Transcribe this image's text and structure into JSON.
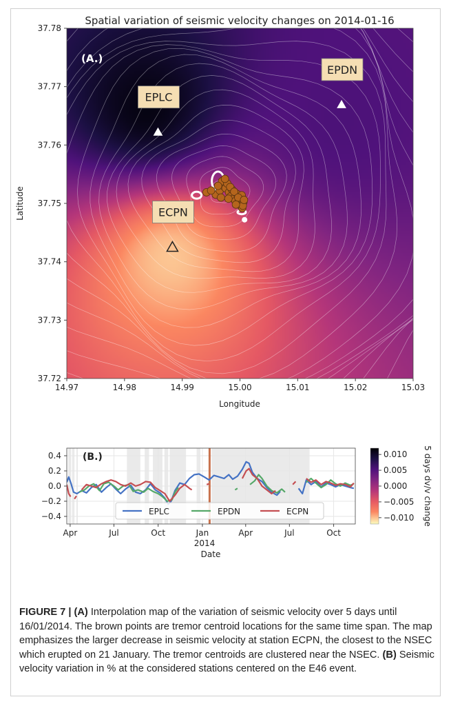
{
  "colors": {
    "epdn_box": "#f5deb3",
    "tremor_point": "#b5651d",
    "series_eplc": "#4472c4",
    "series_epdn": "#55a868",
    "series_ecpn": "#c44e52",
    "event_line": "#c8734e",
    "shade": "#d9d9d9"
  },
  "chart_data": [
    {
      "type": "heatmap",
      "title": "Spatial variation of seismic velocity changes on 2014-01-16",
      "panel_label": "(A.)",
      "xlabel": "Longitude",
      "ylabel": "Latitude",
      "xlim": [
        14.97,
        15.03
      ],
      "ylim": [
        37.72,
        37.78
      ],
      "xticks": [
        "14.97",
        "14.98",
        "14.99",
        "15.00",
        "15.01",
        "15.02",
        "15.03"
      ],
      "yticks": [
        "37.72",
        "37.73",
        "37.74",
        "37.75",
        "37.76",
        "37.77",
        "37.78"
      ],
      "grid": false,
      "colormap": "magma (reversed)",
      "stations": [
        {
          "name": "EPLC",
          "lon": 14.9858,
          "lat": 37.7622,
          "marker": "filled-triangle"
        },
        {
          "name": "EPDN",
          "lon": 15.0176,
          "lat": 37.7669,
          "marker": "filled-triangle"
        },
        {
          "name": "ECPN",
          "lon": 14.9883,
          "lat": 37.7425,
          "marker": "open-triangle"
        }
      ],
      "field_sources": [
        {
          "lon": 14.984,
          "lat": 37.766,
          "value": 0.0115
        },
        {
          "lon": 15.017,
          "lat": 37.764,
          "value": 0.0055
        },
        {
          "lon": 14.988,
          "lat": 37.741,
          "value": -0.0105
        }
      ],
      "tremor_centroids": [
        [
          14.9942,
          37.7519
        ],
        [
          14.9958,
          37.7515
        ],
        [
          14.9965,
          37.7522
        ],
        [
          14.9971,
          37.753
        ],
        [
          14.9969,
          37.7538
        ],
        [
          14.9975,
          37.7526
        ],
        [
          14.9981,
          37.7519
        ],
        [
          14.9984,
          37.7512
        ],
        [
          14.9989,
          37.7508
        ],
        [
          14.9992,
          37.7504
        ],
        [
          14.9996,
          37.75
        ],
        [
          15.0001,
          37.7496
        ],
        [
          15.0004,
          37.7492
        ],
        [
          14.9978,
          37.7534
        ],
        [
          14.9986,
          37.7524
        ],
        [
          14.9995,
          37.7516
        ],
        [
          15.0001,
          37.7508
        ],
        [
          15.0006,
          37.7502
        ],
        [
          15.0003,
          37.7514
        ],
        [
          14.9962,
          37.753
        ],
        [
          14.9974,
          37.7542
        ],
        [
          14.9983,
          37.7528
        ],
        [
          14.999,
          37.752
        ],
        [
          14.9997,
          37.751
        ],
        [
          15.0005,
          37.7496
        ],
        [
          14.995,
          37.7522
        ],
        [
          14.9967,
          37.751
        ],
        [
          14.998,
          37.7508
        ],
        [
          14.9993,
          37.7498
        ],
        [
          15.0007,
          37.7506
        ]
      ],
      "colorbar": {
        "label": "5 days dv/v change",
        "ticks": [
          "0.010",
          "0.005",
          "0.000",
          "−0.005",
          "−0.010"
        ],
        "range": [
          -0.012,
          0.012
        ]
      }
    },
    {
      "type": "line",
      "panel_label": "(B.)",
      "xlabel": "Date",
      "ylabel": "",
      "x_range": [
        "2013-03-25",
        "2014-11-15"
      ],
      "ylim": [
        -0.5,
        0.5
      ],
      "xticks": [
        "Apr",
        "Jul",
        "Oct",
        "Jan",
        "Apr",
        "Jul",
        "Oct"
      ],
      "xtick_dates": [
        "2013-04-01",
        "2013-07-01",
        "2013-10-01",
        "2014-01-01",
        "2014-04-01",
        "2014-07-01",
        "2014-10-01"
      ],
      "year_label": "2014",
      "yticks": [
        "0.4",
        "0.2",
        "0.0",
        "−0.2",
        "−0.4"
      ],
      "ytick_values": [
        0.4,
        0.2,
        0.0,
        -0.2,
        -0.4
      ],
      "event_date": "2014-01-16",
      "shaded_spans": [
        [
          "2013-03-28",
          "2013-04-03"
        ],
        [
          "2013-04-05",
          "2013-04-10"
        ],
        [
          "2013-04-14",
          "2013-04-17"
        ],
        [
          "2013-07-28",
          "2013-08-25"
        ],
        [
          "2013-09-03",
          "2013-09-12"
        ],
        [
          "2013-09-20",
          "2013-10-10"
        ],
        [
          "2013-10-14",
          "2013-10-22"
        ],
        [
          "2013-10-25",
          "2013-11-28"
        ],
        [
          "2013-12-20",
          "2013-12-28"
        ],
        [
          "2014-01-20",
          "2014-08-12"
        ]
      ],
      "legend": {
        "placement": "lower-center"
      },
      "series": [
        {
          "name": "EPLC",
          "points": [
            [
              "2013-03-25",
              0.05
            ],
            [
              "2013-03-29",
              0.12
            ],
            [
              "2013-04-03",
              0.03
            ],
            [
              "2013-04-08",
              -0.08
            ],
            [
              "2013-04-15",
              -0.1
            ],
            [
              "2013-04-25",
              -0.06
            ],
            [
              "2013-05-05",
              -0.09
            ],
            [
              "2013-05-15",
              -0.02
            ],
            [
              "2013-05-25",
              0.02
            ],
            [
              "2013-06-05",
              -0.08
            ],
            [
              "2013-06-15",
              -0.02
            ],
            [
              "2013-06-25",
              0.03
            ],
            [
              "2013-07-05",
              -0.04
            ],
            [
              "2013-07-15",
              -0.1
            ],
            [
              "2013-07-25",
              -0.04
            ],
            [
              "2013-08-05",
              0.01
            ],
            [
              "2013-08-15",
              -0.08
            ],
            [
              "2013-08-25",
              -0.1
            ],
            [
              "2013-09-05",
              -0.05
            ],
            [
              "2013-09-15",
              0.03
            ],
            [
              "2013-09-25",
              -0.05
            ],
            [
              "2013-10-05",
              -0.09
            ],
            [
              "2013-10-15",
              -0.16
            ],
            [
              "2013-10-22",
              -0.24
            ],
            [
              "2013-10-28",
              -0.2
            ],
            [
              "2013-11-05",
              -0.06
            ],
            [
              "2013-11-15",
              0.04
            ],
            [
              "2013-11-25",
              0.02
            ],
            [
              "2013-12-05",
              0.1
            ],
            [
              "2013-12-15",
              0.15
            ],
            [
              "2013-12-25",
              0.16
            ],
            [
              "2014-01-05",
              0.12
            ],
            [
              "2014-01-15",
              0.08
            ],
            [
              "2014-01-25",
              0.14
            ],
            [
              "2014-02-05",
              0.12
            ],
            [
              "2014-02-15",
              0.1
            ],
            [
              "2014-02-25",
              0.15
            ],
            [
              "2014-03-05",
              0.09
            ],
            [
              "2014-03-15",
              0.13
            ],
            [
              "2014-03-25",
              0.22
            ],
            [
              "2014-04-02",
              0.32
            ],
            [
              "2014-04-08",
              0.3
            ],
            [
              "2014-04-15",
              0.18
            ],
            [
              "2014-04-25",
              0.1
            ],
            [
              "2014-05-05",
              0.06
            ],
            [
              "2014-05-15",
              -0.02
            ],
            [
              "2014-05-25",
              -0.08
            ],
            [
              "2014-06-05",
              -0.12
            ],
            [
              "2014-06-12",
              -0.07
            ],
            [
              null,
              null
            ],
            [
              "2014-07-20",
              -0.03
            ],
            [
              "2014-07-28",
              -0.1
            ],
            [
              "2014-08-05",
              0.08
            ],
            [
              "2014-08-15",
              0.02
            ],
            [
              "2014-08-25",
              0.06
            ],
            [
              "2014-09-05",
              -0.01
            ],
            [
              "2014-09-15",
              0.04
            ],
            [
              "2014-09-25",
              0.02
            ],
            [
              "2014-10-05",
              -0.01
            ],
            [
              "2014-10-15",
              0.02
            ],
            [
              "2014-10-25",
              0.0
            ],
            [
              "2014-11-05",
              -0.02
            ],
            [
              "2014-11-12",
              -0.03
            ]
          ]
        },
        {
          "name": "EPDN",
          "points": [
            [
              "2013-04-20",
              -0.08
            ],
            [
              "2013-05-01",
              -0.05
            ],
            [
              "2013-05-10",
              0.0
            ],
            [
              "2013-05-20",
              0.03
            ],
            [
              "2013-06-01",
              -0.06
            ],
            [
              "2013-06-10",
              0.03
            ],
            [
              "2013-06-20",
              0.05
            ],
            [
              "2013-07-01",
              0.0
            ],
            [
              "2013-07-10",
              -0.05
            ],
            [
              "2013-07-20",
              0.0
            ],
            [
              "2013-08-01",
              0.02
            ],
            [
              "2013-08-10",
              -0.07
            ],
            [
              "2013-08-20",
              -0.05
            ],
            [
              "2013-09-01",
              -0.08
            ],
            [
              "2013-09-10",
              -0.03
            ],
            [
              "2013-09-20",
              -0.07
            ],
            [
              "2013-10-01",
              -0.1
            ],
            [
              "2013-10-10",
              -0.14
            ],
            [
              "2013-10-20",
              -0.2
            ],
            [
              "2013-10-30",
              -0.18
            ],
            [
              "2013-11-05",
              -0.08
            ],
            [
              "2013-11-12",
              -0.02
            ],
            [
              null,
              null
            ],
            [
              "2014-03-10",
              -0.05
            ],
            [
              "2014-03-15",
              -0.03
            ],
            [
              null,
              null
            ],
            [
              "2014-04-10",
              0.02
            ],
            [
              "2014-04-20",
              0.07
            ],
            [
              "2014-04-28",
              0.15
            ],
            [
              "2014-05-05",
              0.1
            ],
            [
              "2014-05-15",
              0.0
            ],
            [
              "2014-05-25",
              -0.06
            ],
            [
              "2014-06-05",
              -0.09
            ],
            [
              "2014-06-15",
              -0.04
            ],
            [
              "2014-06-22",
              -0.08
            ],
            [
              null,
              null
            ],
            [
              "2014-08-05",
              0.05
            ],
            [
              "2014-08-15",
              0.1
            ],
            [
              "2014-08-25",
              0.04
            ],
            [
              "2014-09-05",
              -0.02
            ],
            [
              "2014-09-15",
              0.02
            ],
            [
              "2014-09-25",
              0.08
            ],
            [
              "2014-10-05",
              0.03
            ],
            [
              "2014-10-15",
              0.0
            ],
            [
              "2014-10-25",
              0.04
            ],
            [
              "2014-11-05",
              0.01
            ],
            [
              "2014-11-12",
              0.03
            ]
          ]
        },
        {
          "name": "ECPN",
          "points": [
            [
              "2013-03-25",
              0.02
            ],
            [
              "2013-03-29",
              -0.1
            ],
            [
              "2013-04-02",
              -0.14
            ],
            [
              null,
              null
            ],
            [
              "2013-04-10",
              -0.17
            ],
            [
              "2013-04-14",
              -0.13
            ],
            [
              null,
              null
            ],
            [
              "2013-04-25",
              -0.05
            ],
            [
              "2013-05-05",
              0.02
            ],
            [
              "2013-05-15",
              0.0
            ],
            [
              "2013-05-25",
              -0.02
            ],
            [
              "2013-06-05",
              0.03
            ],
            [
              "2013-06-15",
              0.06
            ],
            [
              "2013-06-25",
              0.08
            ],
            [
              "2013-07-05",
              0.06
            ],
            [
              "2013-07-15",
              0.02
            ],
            [
              "2013-07-25",
              0.0
            ],
            [
              "2013-08-05",
              0.04
            ],
            [
              "2013-08-15",
              0.0
            ],
            [
              "2013-08-25",
              0.02
            ],
            [
              "2013-09-05",
              0.06
            ],
            [
              "2013-09-15",
              0.05
            ],
            [
              "2013-09-25",
              -0.02
            ],
            [
              "2013-10-05",
              -0.06
            ],
            [
              "2013-10-15",
              -0.1
            ],
            [
              "2013-10-25",
              -0.2
            ],
            [
              "2013-11-05",
              -0.12
            ],
            [
              "2013-11-15",
              -0.03
            ],
            [
              "2013-11-25",
              0.02
            ],
            [
              "2013-12-05",
              -0.03
            ],
            [
              "2013-12-10",
              -0.05
            ],
            [
              null,
              null
            ],
            [
              "2014-01-10",
              0.02
            ],
            [
              "2014-01-15",
              0.03
            ],
            [
              null,
              null
            ],
            [
              "2014-03-25",
              0.1
            ],
            [
              "2014-04-02",
              0.2
            ],
            [
              "2014-04-08",
              0.23
            ],
            [
              "2014-04-15",
              0.15
            ],
            [
              "2014-04-25",
              0.1
            ],
            [
              "2014-05-05",
              0.0
            ],
            [
              "2014-05-15",
              -0.05
            ],
            [
              "2014-05-25",
              -0.1
            ],
            [
              "2014-06-02",
              -0.06
            ],
            [
              null,
              null
            ],
            [
              "2014-07-08",
              0.02
            ],
            [
              "2014-07-14",
              0.06
            ],
            [
              null,
              null
            ],
            [
              "2014-08-05",
              0.1
            ],
            [
              "2014-08-15",
              0.05
            ],
            [
              "2014-08-25",
              0.08
            ],
            [
              "2014-09-05",
              0.02
            ],
            [
              "2014-09-15",
              0.06
            ],
            [
              "2014-09-25",
              0.04
            ],
            [
              "2014-10-05",
              0.01
            ],
            [
              "2014-10-15",
              0.03
            ],
            [
              "2014-10-25",
              0.02
            ],
            [
              "2014-11-05",
              -0.01
            ],
            [
              "2014-11-12",
              0.04
            ]
          ]
        }
      ]
    }
  ],
  "caption": {
    "label": "FIGURE 7 | ",
    "part_a": "(A)",
    "text_a": " Interpolation map of the variation of seismic velocity over 5 days until 16/01/2014. The brown points are tremor centroid locations for the same time span. The map emphasizes the larger decrease in seismic velocity at station ECPN, the closest to the NSEC which erupted on 21 January. The tremor centroids are clustered near the NSEC. ",
    "part_b": "(B)",
    "text_b": " Seismic velocity variation in % at the considered stations centered on the E46 event."
  }
}
